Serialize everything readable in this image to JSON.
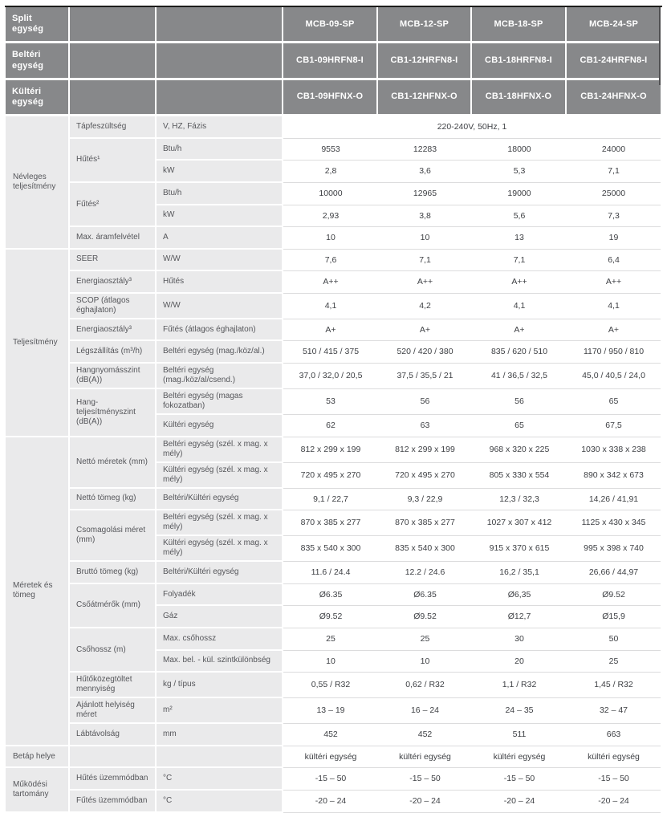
{
  "colors": {
    "header_bg": "#87888a",
    "label_bg": "#eaeaeb",
    "top_border": "#1d1d1b",
    "header_right_border": "#4f4f51",
    "value_separator": "#dcdcdd",
    "header_text": "#ffffff",
    "label_text": "#55565a",
    "value_text": "#3e4044"
  },
  "header_rows": [
    {
      "label": "Split egység",
      "values": [
        "MCB-09-SP",
        "MCB-12-SP",
        "MCB-18-SP",
        "MCB-24-SP"
      ]
    },
    {
      "label": "Beltéri egység",
      "values": [
        "CB1-09HRFN8-I",
        "CB1-12HRFN8-I",
        "CB1-18HRFN8-I",
        "CB1-24HRFN8-I"
      ]
    },
    {
      "label": "Kültéri egység",
      "values": [
        "CB1-09HFNX-O",
        "CB1-12HFNX-O",
        "CB1-18HFNX-O",
        "CB1-24HFNX-O"
      ]
    }
  ],
  "rows": [
    {
      "cells": [
        {
          "t": "Névleges teljesítmény",
          "c": "c1",
          "rs": 6
        },
        {
          "t": "Tápfeszültség",
          "c": "c2"
        },
        {
          "t": "V, HZ, Fázis",
          "c": "c3"
        },
        {
          "t": "220-240V, 50Hz, 1",
          "c": "val",
          "cs": 4
        }
      ]
    },
    {
      "cells": [
        {
          "t": "Hűtés¹",
          "c": "c2",
          "rs": 2
        },
        {
          "t": "Btu/h",
          "c": "c3"
        },
        {
          "t": "9553",
          "c": "val"
        },
        {
          "t": "12283",
          "c": "val"
        },
        {
          "t": "18000",
          "c": "val"
        },
        {
          "t": "24000",
          "c": "val"
        }
      ]
    },
    {
      "cells": [
        {
          "t": "kW",
          "c": "c3"
        },
        {
          "t": "2,8",
          "c": "val"
        },
        {
          "t": "3,6",
          "c": "val"
        },
        {
          "t": "5,3",
          "c": "val"
        },
        {
          "t": "7,1",
          "c": "val"
        }
      ]
    },
    {
      "cells": [
        {
          "t": "Fűtés²",
          "c": "c2",
          "rs": 2
        },
        {
          "t": "Btu/h",
          "c": "c3"
        },
        {
          "t": "10000",
          "c": "val"
        },
        {
          "t": "12965",
          "c": "val"
        },
        {
          "t": "19000",
          "c": "val"
        },
        {
          "t": "25000",
          "c": "val"
        }
      ]
    },
    {
      "cells": [
        {
          "t": "kW",
          "c": "c3"
        },
        {
          "t": "2,93",
          "c": "val"
        },
        {
          "t": "3,8",
          "c": "val"
        },
        {
          "t": "5,6",
          "c": "val"
        },
        {
          "t": "7,3",
          "c": "val"
        }
      ]
    },
    {
      "cells": [
        {
          "t": "Max. áramfelvétel",
          "c": "c2"
        },
        {
          "t": "A",
          "c": "c3"
        },
        {
          "t": "10",
          "c": "val"
        },
        {
          "t": "10",
          "c": "val"
        },
        {
          "t": "13",
          "c": "val"
        },
        {
          "t": "19",
          "c": "val"
        }
      ]
    },
    {
      "cells": [
        {
          "t": "Teljesítmény",
          "c": "c1",
          "rs": 8
        },
        {
          "t": "SEER",
          "c": "c2"
        },
        {
          "t": "W/W",
          "c": "c3"
        },
        {
          "t": "7,6",
          "c": "val"
        },
        {
          "t": "7,1",
          "c": "val"
        },
        {
          "t": "7,1",
          "c": "val"
        },
        {
          "t": "6,4",
          "c": "val"
        }
      ]
    },
    {
      "cells": [
        {
          "t": "Energiaosztály³",
          "c": "c2"
        },
        {
          "t": "Hűtés",
          "c": "c3"
        },
        {
          "t": "A++",
          "c": "val"
        },
        {
          "t": "A++",
          "c": "val"
        },
        {
          "t": "A++",
          "c": "val"
        },
        {
          "t": "A++",
          "c": "val"
        }
      ]
    },
    {
      "cells": [
        {
          "t": "SCOP (átlagos éghajlaton)",
          "c": "c2"
        },
        {
          "t": "W/W",
          "c": "c3"
        },
        {
          "t": "4,1",
          "c": "val"
        },
        {
          "t": "4,2",
          "c": "val"
        },
        {
          "t": "4,1",
          "c": "val"
        },
        {
          "t": "4,1",
          "c": "val"
        }
      ]
    },
    {
      "cells": [
        {
          "t": "Energiaosztály³",
          "c": "c2"
        },
        {
          "t": "Fűtés (átlagos éghajlaton)",
          "c": "c3"
        },
        {
          "t": "A+",
          "c": "val"
        },
        {
          "t": "A+",
          "c": "val"
        },
        {
          "t": "A+",
          "c": "val"
        },
        {
          "t": "A+",
          "c": "val"
        }
      ]
    },
    {
      "cells": [
        {
          "t": "Légszállítás (m³/h)",
          "c": "c2"
        },
        {
          "t": "Beltéri egység (mag./köz/al.)",
          "c": "c3"
        },
        {
          "t": "510 / 415 / 375",
          "c": "val"
        },
        {
          "t": "520 / 420 / 380",
          "c": "val"
        },
        {
          "t": "835 / 620 / 510",
          "c": "val"
        },
        {
          "t": "1170 / 950 / 810",
          "c": "val"
        }
      ]
    },
    {
      "cells": [
        {
          "t": "Hangnyomásszint (dB(A))",
          "c": "c2"
        },
        {
          "t": "Beltéri egység (mag./köz/al/csend.)",
          "c": "c3"
        },
        {
          "t": "37,0 / 32,0 / 20,5",
          "c": "val"
        },
        {
          "t": "37,5 / 35,5 / 21",
          "c": "val"
        },
        {
          "t": "41 / 36,5 / 32,5",
          "c": "val"
        },
        {
          "t": "45,0 / 40,5 / 24,0",
          "c": "val"
        }
      ]
    },
    {
      "cells": [
        {
          "t": "Hang-teljesítményszint (dB(A))",
          "c": "c2",
          "rs": 2
        },
        {
          "t": "Beltéri egység (magas fokozatban)",
          "c": "c3"
        },
        {
          "t": "53",
          "c": "val"
        },
        {
          "t": "56",
          "c": "val"
        },
        {
          "t": "56",
          "c": "val"
        },
        {
          "t": "65",
          "c": "val"
        }
      ]
    },
    {
      "cells": [
        {
          "t": "Kültéri egység",
          "c": "c3"
        },
        {
          "t": "62",
          "c": "val"
        },
        {
          "t": "63",
          "c": "val"
        },
        {
          "t": "65",
          "c": "val"
        },
        {
          "t": "67,5",
          "c": "val"
        }
      ]
    },
    {
      "cells": [
        {
          "t": "Méretek és tömeg",
          "c": "c1",
          "rs": 13
        },
        {
          "t": "Nettó méretek (mm)",
          "c": "c2",
          "rs": 2
        },
        {
          "t": "Beltéri egység (szél. x mag. x mély)",
          "c": "c3"
        },
        {
          "t": "812 x 299 x 199",
          "c": "val"
        },
        {
          "t": "812 x 299 x 199",
          "c": "val"
        },
        {
          "t": "968 x 320 x 225",
          "c": "val"
        },
        {
          "t": "1030 x 338 x 238",
          "c": "val"
        }
      ]
    },
    {
      "cells": [
        {
          "t": "Kültéri egység (szél. x mag. x mély)",
          "c": "c3"
        },
        {
          "t": "720 x 495 x 270",
          "c": "val"
        },
        {
          "t": "720 x 495 x 270",
          "c": "val"
        },
        {
          "t": "805 x 330 x 554",
          "c": "val"
        },
        {
          "t": "890 x 342 x 673",
          "c": "val"
        }
      ]
    },
    {
      "cells": [
        {
          "t": "Nettó tömeg (kg)",
          "c": "c2"
        },
        {
          "t": "Beltéri/Kültéri egység",
          "c": "c3"
        },
        {
          "t": "9,1 / 22,7",
          "c": "val"
        },
        {
          "t": "9,3 / 22,9",
          "c": "val"
        },
        {
          "t": "12,3 / 32,3",
          "c": "val"
        },
        {
          "t": "14,26 / 41,91",
          "c": "val"
        }
      ]
    },
    {
      "cells": [
        {
          "t": "Csomagolási méret (mm)",
          "c": "c2",
          "rs": 2
        },
        {
          "t": "Beltéri egység (szél. x mag. x mély)",
          "c": "c3"
        },
        {
          "t": "870 x 385 x 277",
          "c": "val"
        },
        {
          "t": "870 x 385 x 277",
          "c": "val"
        },
        {
          "t": "1027 x 307 x 412",
          "c": "val"
        },
        {
          "t": "1125 x 430 x 345",
          "c": "val"
        }
      ]
    },
    {
      "cells": [
        {
          "t": "Kültéri egység (szél. x mag. x mély)",
          "c": "c3"
        },
        {
          "t": "835 x 540 x 300",
          "c": "val"
        },
        {
          "t": "835 x 540 x 300",
          "c": "val"
        },
        {
          "t": "915 x 370 x 615",
          "c": "val"
        },
        {
          "t": "995 x 398 x 740",
          "c": "val"
        }
      ]
    },
    {
      "cells": [
        {
          "t": "Bruttó tömeg (kg)",
          "c": "c2"
        },
        {
          "t": "Beltéri/Kültéri egység",
          "c": "c3"
        },
        {
          "t": "11.6 / 24.4",
          "c": "val"
        },
        {
          "t": "12.2 / 24.6",
          "c": "val"
        },
        {
          "t": "16,2 / 35,1",
          "c": "val"
        },
        {
          "t": "26,66 / 44,97",
          "c": "val"
        }
      ]
    },
    {
      "cells": [
        {
          "t": "Csőátmérők (mm)",
          "c": "c2",
          "rs": 2
        },
        {
          "t": "Folyadék",
          "c": "c3"
        },
        {
          "t": "Ø6.35",
          "c": "val"
        },
        {
          "t": "Ø6.35",
          "c": "val"
        },
        {
          "t": "Ø6,35",
          "c": "val"
        },
        {
          "t": "Ø9.52",
          "c": "val"
        }
      ]
    },
    {
      "cells": [
        {
          "t": "Gáz",
          "c": "c3"
        },
        {
          "t": "Ø9.52",
          "c": "val"
        },
        {
          "t": "Ø9.52",
          "c": "val"
        },
        {
          "t": "Ø12,7",
          "c": "val"
        },
        {
          "t": "Ø15,9",
          "c": "val"
        }
      ]
    },
    {
      "cells": [
        {
          "t": "Csőhossz (m)",
          "c": "c2",
          "rs": 2
        },
        {
          "t": "Max. csőhossz",
          "c": "c3"
        },
        {
          "t": "25",
          "c": "val"
        },
        {
          "t": "25",
          "c": "val"
        },
        {
          "t": "30",
          "c": "val"
        },
        {
          "t": "50",
          "c": "val"
        }
      ]
    },
    {
      "cells": [
        {
          "t": "Max. bel. - kül. szintkülönbség",
          "c": "c3"
        },
        {
          "t": "10",
          "c": "val"
        },
        {
          "t": "10",
          "c": "val"
        },
        {
          "t": "20",
          "c": "val"
        },
        {
          "t": "25",
          "c": "val"
        }
      ]
    },
    {
      "cells": [
        {
          "t": "Hűtőközegtöltet mennyiség",
          "c": "c2"
        },
        {
          "t": "kg / típus",
          "c": "c3"
        },
        {
          "t": "0,55 / R32",
          "c": "val"
        },
        {
          "t": "0,62 / R32",
          "c": "val"
        },
        {
          "t": "1,1 / R32",
          "c": "val"
        },
        {
          "t": "1,45 / R32",
          "c": "val"
        }
      ]
    },
    {
      "cells": [
        {
          "t": "Ajánlott helyiség méret",
          "c": "c2"
        },
        {
          "t": "m²",
          "c": "c3"
        },
        {
          "t": "13 – 19",
          "c": "val"
        },
        {
          "t": "16 – 24",
          "c": "val"
        },
        {
          "t": "24 – 35",
          "c": "val"
        },
        {
          "t": "32 – 47",
          "c": "val"
        }
      ]
    },
    {
      "cells": [
        {
          "t": "Lábtávolság",
          "c": "c2"
        },
        {
          "t": "mm",
          "c": "c3"
        },
        {
          "t": "452",
          "c": "val"
        },
        {
          "t": "452",
          "c": "val"
        },
        {
          "t": "511",
          "c": "val"
        },
        {
          "t": "663",
          "c": "val"
        }
      ]
    },
    {
      "cells": [
        {
          "t": "Betáp helye",
          "c": "c1"
        },
        {
          "t": "",
          "c": "c2"
        },
        {
          "t": "",
          "c": "c3"
        },
        {
          "t": "kültéri egység",
          "c": "val"
        },
        {
          "t": "kültéri egység",
          "c": "val"
        },
        {
          "t": "kültéri egység",
          "c": "val"
        },
        {
          "t": "kültéri egység",
          "c": "val"
        }
      ]
    },
    {
      "cells": [
        {
          "t": "Működési tartomány",
          "c": "c1",
          "rs": 2
        },
        {
          "t": "Hűtés üzemmódban",
          "c": "c2"
        },
        {
          "t": "°C",
          "c": "c3"
        },
        {
          "t": "-15 – 50",
          "c": "val"
        },
        {
          "t": "-15 – 50",
          "c": "val"
        },
        {
          "t": "-15 – 50",
          "c": "val"
        },
        {
          "t": "-15 – 50",
          "c": "val"
        }
      ]
    },
    {
      "cells": [
        {
          "t": "Fűtés üzemmódban",
          "c": "c2"
        },
        {
          "t": "°C",
          "c": "c3"
        },
        {
          "t": "-20 – 24",
          "c": "val"
        },
        {
          "t": "-20 – 24",
          "c": "val"
        },
        {
          "t": "-20 – 24",
          "c": "val"
        },
        {
          "t": "-20 – 24",
          "c": "val"
        }
      ]
    }
  ]
}
